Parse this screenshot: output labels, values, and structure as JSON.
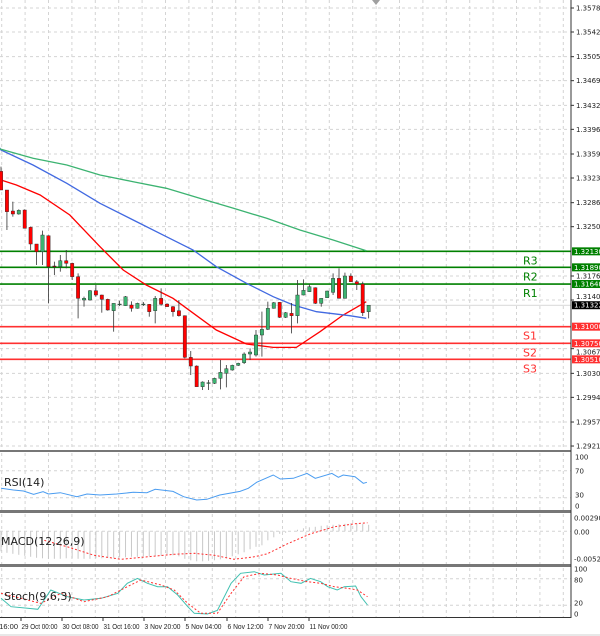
{
  "chart_data": [
    {
      "type": "candlestick",
      "price_axis": {
        "ticks": [
          "1.35780",
          "1.35420",
          "1.35050",
          "1.34690",
          "1.34320",
          "1.33960",
          "1.33590",
          "1.33230",
          "1.32860",
          "1.32500",
          "1.31760",
          "1.31400",
          "1.30670",
          "1.30300",
          "1.29940",
          "1.29570",
          "1.29210"
        ],
        "ylim": [
          1.2915,
          1.359
        ]
      },
      "time_axis": {
        "labels": [
          "16:00",
          "29 Oct 00:00",
          "30 Oct 08:00",
          "31 Oct 16:00",
          "3 Nov 20:00",
          "5 Nov 04:00",
          "6 Nov 12:00",
          "7 Nov 20:00",
          "11 Nov 00:00"
        ]
      },
      "current_price": "1.31322",
      "levels": [
        {
          "name": "R3",
          "value": "1.32130",
          "color": "#008000"
        },
        {
          "name": "R2",
          "value": "1.31890",
          "color": "#008000"
        },
        {
          "name": "R1",
          "value": "1.31640",
          "color": "#008000"
        },
        {
          "name": "S1",
          "value": "1.31000",
          "color": "#ff3030"
        },
        {
          "name": "S2",
          "value": "1.30750",
          "color": "#ff3030"
        },
        {
          "name": "S3",
          "value": "1.30510",
          "color": "#ff3030"
        }
      ],
      "colors": {
        "up": "#3cb371",
        "down": "#ff0000",
        "ma_fast": "#ff0000",
        "ma_mid": "#4169e1",
        "ma_slow": "#3cb371"
      },
      "ohlc": [
        [
          1.3333,
          1.334,
          1.3305,
          1.3305
        ],
        [
          1.3305,
          1.3305,
          1.3245,
          1.32725
        ],
        [
          1.32735,
          1.32875,
          1.3265,
          1.3269
        ],
        [
          1.3269,
          1.3276,
          1.3268,
          1.32745
        ],
        [
          1.3275,
          1.3276,
          1.32475,
          1.32475
        ],
        [
          1.3249,
          1.325,
          1.3215,
          1.3224
        ],
        [
          1.3224,
          1.3224,
          1.31925,
          1.32125
        ],
        [
          1.32125,
          1.3244,
          1.31925,
          1.32375
        ],
        [
          1.32365,
          1.3237,
          1.3135,
          1.319
        ],
        [
          1.3191,
          1.31975,
          1.31775,
          1.319
        ],
        [
          1.319,
          1.32075,
          1.31825,
          1.3199
        ],
        [
          1.3199,
          1.3215,
          1.31875,
          1.3195
        ],
        [
          1.3195,
          1.3196,
          1.317,
          1.3175
        ],
        [
          1.3175,
          1.318,
          1.31125,
          1.31425
        ],
        [
          1.314,
          1.3145,
          1.313,
          1.31425
        ],
        [
          1.314,
          1.3155,
          1.3139,
          1.3154
        ],
        [
          1.3154,
          1.31625,
          1.3145,
          1.31475
        ],
        [
          1.31475,
          1.3148,
          1.3121,
          1.3141
        ],
        [
          1.3141,
          1.3142,
          1.3124,
          1.3125
        ],
        [
          1.3124,
          1.3135,
          1.30925,
          1.3135
        ],
        [
          1.3134,
          1.3139,
          1.3131,
          1.3134
        ],
        [
          1.31315,
          1.3146,
          1.3131,
          1.3145
        ],
        [
          1.31325,
          1.3138,
          1.31225,
          1.31275
        ],
        [
          1.31275,
          1.3136,
          1.3127,
          1.3135
        ],
        [
          1.3134,
          1.3137,
          1.3131,
          1.3134
        ],
        [
          1.31335,
          1.3134,
          1.3115,
          1.31225
        ],
        [
          1.3124,
          1.3146,
          1.3105,
          1.31425
        ],
        [
          1.31425,
          1.31575,
          1.31315,
          1.31335
        ],
        [
          1.3134,
          1.3135,
          1.313,
          1.313
        ],
        [
          1.313,
          1.3131,
          1.3115,
          1.31225
        ],
        [
          1.3124,
          1.314,
          1.3115,
          1.31165
        ],
        [
          1.31165,
          1.3117,
          1.30525,
          1.3054
        ],
        [
          1.3054,
          1.30635,
          1.30275,
          1.3041
        ],
        [
          1.3041,
          1.3042,
          1.301,
          1.301
        ],
        [
          1.301,
          1.3018,
          1.3005,
          1.3017
        ],
        [
          1.3016,
          1.302,
          1.3005,
          1.3016
        ],
        [
          1.3015,
          1.30235,
          1.3014,
          1.30225
        ],
        [
          1.30225,
          1.305,
          1.3006,
          1.30315
        ],
        [
          1.303,
          1.30425,
          1.3009,
          1.3037
        ],
        [
          1.3035,
          1.3043,
          1.3034,
          1.3042
        ],
        [
          1.3042,
          1.3046,
          1.3041,
          1.3045
        ],
        [
          1.3046,
          1.30615,
          1.3044,
          1.3059
        ],
        [
          1.3059,
          1.30675,
          1.305,
          1.3062
        ],
        [
          1.30575,
          1.3095,
          1.3055,
          1.30875
        ],
        [
          1.30875,
          1.31225,
          1.3055,
          1.3096
        ],
        [
          1.3096,
          1.31375,
          1.3095,
          1.31275
        ],
        [
          1.31275,
          1.3137,
          1.3127,
          1.3136
        ],
        [
          1.31365,
          1.3137,
          1.3113,
          1.3114
        ],
        [
          1.3114,
          1.3122,
          1.3113,
          1.3121
        ],
        [
          1.312,
          1.31355,
          1.309,
          1.31165
        ],
        [
          1.31165,
          1.317,
          1.3105,
          1.31475
        ],
        [
          1.31475,
          1.3171,
          1.3147,
          1.31545
        ],
        [
          1.31525,
          1.3164,
          1.3152,
          1.316
        ],
        [
          1.31585,
          1.3159,
          1.3134,
          1.3135
        ],
        [
          1.3135,
          1.31425,
          1.313,
          1.31425
        ],
        [
          1.31435,
          1.3154,
          1.3143,
          1.31535
        ],
        [
          1.31515,
          1.318,
          1.31475,
          1.31725
        ],
        [
          1.31725,
          1.31875,
          1.3142,
          1.31425
        ],
        [
          1.31425,
          1.3181,
          1.3142,
          1.3176
        ],
        [
          1.3176,
          1.318,
          1.3167,
          1.31675
        ],
        [
          1.31675,
          1.317,
          1.3155,
          1.3164
        ],
        [
          1.3164,
          1.31675,
          1.3116,
          1.3121
        ],
        [
          1.31225,
          1.31325,
          1.31125,
          1.31322
        ]
      ],
      "moving_averages": [
        {
          "key": "ma_fast",
          "points": [
            [
              0,
              1.332
            ],
            [
              2.6,
              1.33125
            ],
            [
              6.6,
              1.32975
            ],
            [
              11.6,
              1.32675
            ],
            [
              16.7,
              1.322
            ],
            [
              20.6,
              1.3185
            ],
            [
              24.5,
              1.31625
            ],
            [
              29,
              1.31425
            ],
            [
              31.3,
              1.31275
            ],
            [
              36.3,
              1.3095
            ],
            [
              41.4,
              1.3074
            ],
            [
              45.9,
              1.3069
            ],
            [
              49.8,
              1.3069
            ],
            [
              53.8,
              1.30925
            ],
            [
              57.7,
              1.31175
            ],
            [
              61.6,
              1.31375
            ]
          ]
        },
        {
          "key": "ma_mid",
          "points": [
            [
              -0.2,
              1.3368
            ],
            [
              0,
              1.3365
            ],
            [
              5.4,
              1.33425
            ],
            [
              11.1,
              1.3315
            ],
            [
              16.7,
              1.3285
            ],
            [
              22.3,
              1.326
            ],
            [
              27.9,
              1.3235
            ],
            [
              32.4,
              1.3215
            ],
            [
              36.3,
              1.319
            ],
            [
              41.4,
              1.3165
            ],
            [
              45.9,
              1.3145
            ],
            [
              49.3,
              1.31325
            ],
            [
              53.2,
              1.31225
            ],
            [
              58.8,
              1.31165
            ],
            [
              61.6,
              1.31125
            ]
          ]
        },
        {
          "key": "ma_slow",
          "points": [
            [
              -0.2,
              1.3367
            ],
            [
              0,
              1.3366
            ],
            [
              5.4,
              1.33525
            ],
            [
              11.1,
              1.33425
            ],
            [
              16.7,
              1.33275
            ],
            [
              22.3,
              1.33175
            ],
            [
              27.9,
              1.33075
            ],
            [
              33.5,
              1.32925
            ],
            [
              39.2,
              1.32775
            ],
            [
              44.8,
              1.32625
            ],
            [
              50.4,
              1.3245
            ],
            [
              56,
              1.323
            ],
            [
              61.6,
              1.3214
            ]
          ]
        }
      ]
    },
    {
      "type": "line",
      "title": "RSI(14)",
      "ticks": [
        "100",
        "70",
        "30",
        "0"
      ],
      "levels": [
        70,
        30
      ],
      "color": "#4a9cf0",
      "points": [
        [
          0,
          43.9
        ],
        [
          2.1,
          41.4
        ],
        [
          3.8,
          39.9
        ],
        [
          5.5,
          35
        ],
        [
          7.1,
          38.9
        ],
        [
          8,
          35.5
        ],
        [
          10,
          37.4
        ],
        [
          12.8,
          31.5
        ],
        [
          14.5,
          35.5
        ],
        [
          16.7,
          34
        ],
        [
          19.5,
          35.5
        ],
        [
          22.3,
          38
        ],
        [
          24.6,
          37.4
        ],
        [
          26,
          42.4
        ],
        [
          29,
          39.4
        ],
        [
          30.8,
          31.5
        ],
        [
          33,
          26.6
        ],
        [
          34.7,
          27.6
        ],
        [
          36.9,
          34
        ],
        [
          40.3,
          39.4
        ],
        [
          41.7,
          43.9
        ],
        [
          43.1,
          52.8
        ],
        [
          45.9,
          63.6
        ],
        [
          47.1,
          57.7
        ],
        [
          49.3,
          58.7
        ],
        [
          51.6,
          66
        ],
        [
          53,
          58.7
        ],
        [
          55.8,
          66
        ],
        [
          56.9,
          60.2
        ],
        [
          57.7,
          63.6
        ],
        [
          59.7,
          61.1
        ],
        [
          61.1,
          51.3
        ],
        [
          61.7,
          52.8
        ]
      ]
    },
    {
      "type": "bar",
      "title": "MACD(12,26,9)",
      "ticks": [
        "0.002909",
        "0.00",
        "-0.00523"
      ],
      "histogram_color": "#c8c8c8",
      "signal_color": "#ff3030",
      "histogram": [
        -0.004,
        -0.0043,
        -0.0045,
        -0.0047,
        -0.0049,
        -0.0051,
        -0.0053,
        -0.0054,
        -0.0055,
        -0.0055,
        -0.0055,
        -0.0054,
        -0.0054,
        -0.0055,
        -0.0055,
        -0.0055,
        -0.0054,
        -0.0054,
        -0.0053,
        -0.0053,
        -0.0052,
        -0.0052,
        -0.0051,
        -0.0051,
        -0.005,
        -0.005,
        -0.0049,
        -0.0049,
        -0.0048,
        -0.0048,
        -0.005,
        -0.0055,
        -0.0058,
        -0.006,
        -0.006,
        -0.0059,
        -0.0058,
        -0.0056,
        -0.0054,
        -0.005,
        -0.0046,
        -0.0042,
        -0.0036,
        -0.0031,
        -0.0028,
        -0.0018,
        -0.0012,
        -0.0005,
        -0.0003,
        0.0,
        0.0003,
        0.0006,
        0.0008,
        0.0009,
        0.0011,
        0.0012,
        0.0013,
        0.0014,
        0.0015,
        0.0016,
        0.0016,
        0.0015,
        0.0013
      ],
      "signal": [
        [
          7.3,
          -0.0018
        ],
        [
          11.2,
          -0.0031
        ],
        [
          15.7,
          -0.0048
        ],
        [
          20.2,
          -0.0056
        ],
        [
          24.7,
          -0.0051
        ],
        [
          29.2,
          -0.0046
        ],
        [
          32.6,
          -0.0044
        ],
        [
          36,
          -0.0048
        ],
        [
          39.3,
          -0.0056
        ],
        [
          42.7,
          -0.0051
        ],
        [
          44.9,
          -0.0045
        ],
        [
          48.3,
          -0.0025
        ],
        [
          52.2,
          -0.0005
        ],
        [
          56.2,
          0.0009
        ],
        [
          59.6,
          0.0015
        ],
        [
          61.8,
          0.0017
        ]
      ]
    },
    {
      "type": "line",
      "title": "Stoch(9,6,3)",
      "ticks": [
        "100",
        "80",
        "20",
        "0"
      ],
      "levels": [
        80,
        20
      ],
      "main_color": "#40c0b0",
      "signal_color": "#ff3030",
      "main": [
        [
          0,
          35.6
        ],
        [
          1.7,
          16.7
        ],
        [
          4.5,
          12.9
        ],
        [
          6.2,
          10.6
        ],
        [
          8.4,
          54.5
        ],
        [
          11.2,
          39.4
        ],
        [
          14,
          31.8
        ],
        [
          16.9,
          35.6
        ],
        [
          19.7,
          47
        ],
        [
          21.3,
          69.7
        ],
        [
          23,
          81
        ],
        [
          24.7,
          69.7
        ],
        [
          26.4,
          62.1
        ],
        [
          28.1,
          62.1
        ],
        [
          29.8,
          43.2
        ],
        [
          31.5,
          16.7
        ],
        [
          32.6,
          1.5
        ],
        [
          34.8,
          0
        ],
        [
          36.5,
          8.3
        ],
        [
          38.8,
          69.7
        ],
        [
          40.4,
          92.4
        ],
        [
          42.7,
          96.2
        ],
        [
          44.4,
          88.6
        ],
        [
          47.2,
          92.4
        ],
        [
          48.9,
          73.5
        ],
        [
          50.6,
          69.7
        ],
        [
          52.2,
          81
        ],
        [
          53.9,
          73.5
        ],
        [
          55.1,
          62.1
        ],
        [
          56.7,
          54.5
        ],
        [
          57.9,
          62.1
        ],
        [
          59.8,
          63.6
        ],
        [
          60.7,
          39.4
        ],
        [
          61.8,
          20.5
        ]
      ],
      "signal": [
        [
          0,
          47
        ],
        [
          3.4,
          35.6
        ],
        [
          6.7,
          24.2
        ],
        [
          10.1,
          47
        ],
        [
          14,
          28
        ],
        [
          18,
          39.4
        ],
        [
          21.3,
          62.1
        ],
        [
          23.6,
          77.3
        ],
        [
          27,
          66
        ],
        [
          29.2,
          54.5
        ],
        [
          31.5,
          24.2
        ],
        [
          33.7,
          1.5
        ],
        [
          36.5,
          1.5
        ],
        [
          38.8,
          47
        ],
        [
          41,
          84.8
        ],
        [
          43.8,
          92.4
        ],
        [
          46.6,
          88.6
        ],
        [
          48.9,
          81
        ],
        [
          51.7,
          73.5
        ],
        [
          53.9,
          69.7
        ],
        [
          56.2,
          62.1
        ],
        [
          58.4,
          58.3
        ],
        [
          60.1,
          54.5
        ],
        [
          61.8,
          39.4
        ]
      ]
    }
  ]
}
